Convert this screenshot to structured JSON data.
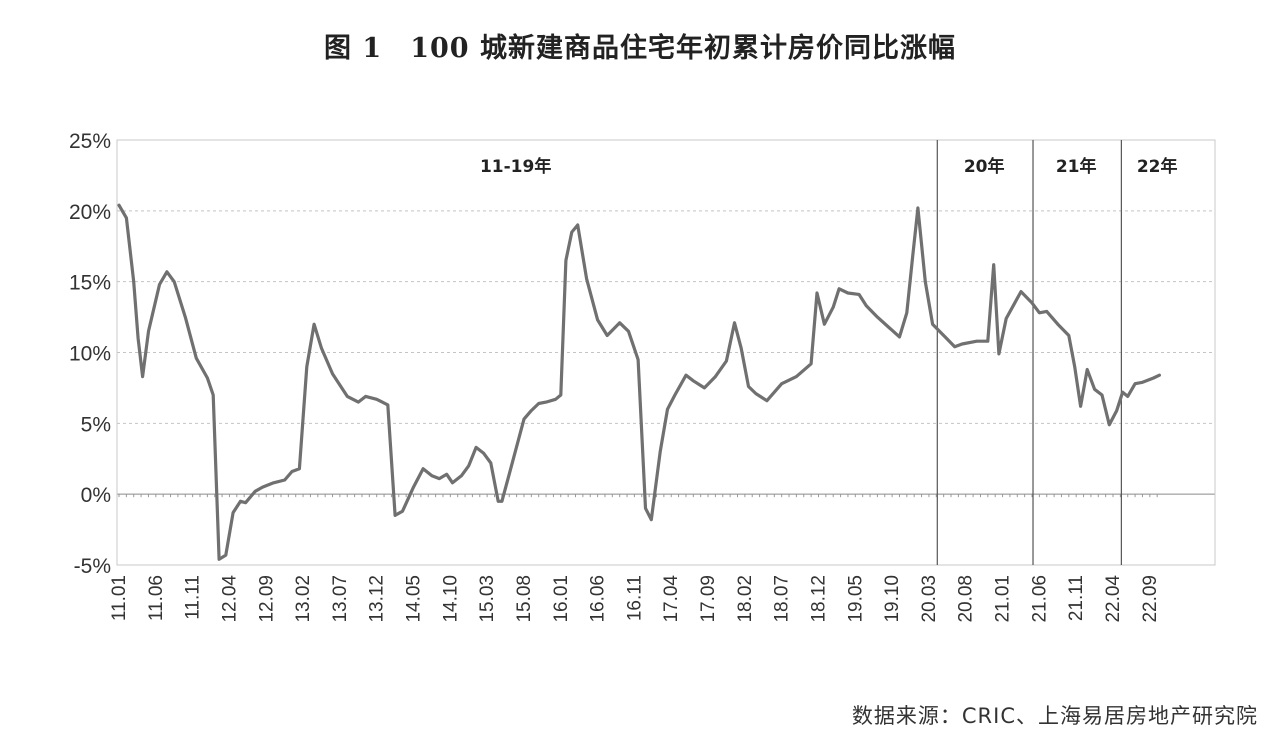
{
  "title": "图 1　100 城新建商品住宅年初累计房价同比涨幅",
  "source": "数据来源：CRIC、上海易居房地产研究院",
  "chart_data": {
    "type": "line",
    "title": "图 1　100 城新建商品住宅年初累计房价同比涨幅",
    "ylim": [
      -5,
      25
    ],
    "yticks": [
      -5,
      0,
      5,
      10,
      15,
      20,
      25
    ],
    "ytick_labels": [
      "-5%",
      "0%",
      "5%",
      "10%",
      "15%",
      "20%",
      "25%"
    ],
    "xlim": [
      0,
      146
    ],
    "xticks": [
      0,
      5,
      10,
      15,
      20,
      25,
      30,
      35,
      40,
      45,
      50,
      55,
      60,
      65,
      70,
      75,
      80,
      85,
      90,
      95,
      100,
      105,
      110,
      115,
      120,
      125,
      130,
      135,
      140
    ],
    "xtick_labels": [
      "11.01",
      "11.06",
      "11.11",
      "12.04",
      "12.09",
      "13.02",
      "13.07",
      "13.12",
      "14.05",
      "14.10",
      "15.03",
      "15.08",
      "16.01",
      "16.06",
      "16.11",
      "17.04",
      "17.09",
      "18.02",
      "18.07",
      "18.12",
      "19.05",
      "19.10",
      "20.03",
      "20.08",
      "21.01",
      "21.06",
      "21.11",
      "22.04",
      "22.09"
    ],
    "grid": true,
    "periods": [
      {
        "label": "11-19年",
        "start": 0,
        "end": 111
      },
      {
        "label": "20年",
        "start": 111,
        "end": 124
      },
      {
        "label": "21年",
        "start": 124,
        "end": 136
      },
      {
        "label": "22年",
        "start": 136,
        "end": 146
      }
    ],
    "series": [
      {
        "color": "#707070",
        "points": [
          [
            0,
            20.4
          ],
          [
            1,
            19.5
          ],
          [
            2,
            15.0
          ],
          [
            2.6,
            11.0
          ],
          [
            3.2,
            8.3
          ],
          [
            4,
            11.5
          ],
          [
            5.5,
            14.8
          ],
          [
            6.5,
            15.7
          ],
          [
            7.5,
            15.0
          ],
          [
            9,
            12.5
          ],
          [
            10.5,
            9.6
          ],
          [
            12,
            8.2
          ],
          [
            12.8,
            7.0
          ],
          [
            13.6,
            -4.6
          ],
          [
            14.5,
            -4.3
          ],
          [
            15.5,
            -1.3
          ],
          [
            16.5,
            -0.5
          ],
          [
            17.2,
            -0.6
          ],
          [
            18.5,
            0.2
          ],
          [
            19.5,
            0.5
          ],
          [
            21,
            0.8
          ],
          [
            22.5,
            1.0
          ],
          [
            23.5,
            1.6
          ],
          [
            24.5,
            1.8
          ],
          [
            25.5,
            9.0
          ],
          [
            26.5,
            12.0
          ],
          [
            27.5,
            10.3
          ],
          [
            29,
            8.5
          ],
          [
            31,
            6.9
          ],
          [
            32.5,
            6.5
          ],
          [
            33.5,
            6.9
          ],
          [
            35,
            6.7
          ],
          [
            36.5,
            6.3
          ],
          [
            37.5,
            -1.5
          ],
          [
            38.5,
            -1.2
          ],
          [
            40,
            0.5
          ],
          [
            41.3,
            1.8
          ],
          [
            42.5,
            1.3
          ],
          [
            43.5,
            1.1
          ],
          [
            44.5,
            1.4
          ],
          [
            45.3,
            0.8
          ],
          [
            46.5,
            1.3
          ],
          [
            47.5,
            2.0
          ],
          [
            48.5,
            3.3
          ],
          [
            49.5,
            2.9
          ],
          [
            50.5,
            2.2
          ],
          [
            51.5,
            -0.5
          ],
          [
            52,
            -0.5
          ],
          [
            53,
            1.4
          ],
          [
            55,
            5.3
          ],
          [
            56,
            5.9
          ],
          [
            57,
            6.4
          ],
          [
            58,
            6.5
          ],
          [
            59.3,
            6.7
          ],
          [
            60,
            7.0
          ],
          [
            60.7,
            16.5
          ],
          [
            61.5,
            18.5
          ],
          [
            62.3,
            19.0
          ],
          [
            63.5,
            15.2
          ],
          [
            65,
            12.3
          ],
          [
            66.3,
            11.2
          ],
          [
            68,
            12.1
          ],
          [
            69.2,
            11.5
          ],
          [
            70.5,
            9.5
          ],
          [
            71.5,
            -1.0
          ],
          [
            72.3,
            -1.8
          ],
          [
            73.5,
            3.0
          ],
          [
            74.5,
            6.0
          ],
          [
            75.5,
            7.0
          ],
          [
            77,
            8.4
          ],
          [
            78,
            8.0
          ],
          [
            79.5,
            7.5
          ],
          [
            81,
            8.3
          ],
          [
            82.5,
            9.4
          ],
          [
            83.6,
            12.1
          ],
          [
            84.5,
            10.3
          ],
          [
            85.5,
            7.6
          ],
          [
            86.5,
            7.1
          ],
          [
            88,
            6.6
          ],
          [
            90,
            7.8
          ],
          [
            92,
            8.3
          ],
          [
            94,
            9.2
          ],
          [
            94.8,
            14.2
          ],
          [
            95.8,
            12.0
          ],
          [
            97,
            13.2
          ],
          [
            97.8,
            14.5
          ],
          [
            99,
            14.2
          ],
          [
            100.5,
            14.1
          ],
          [
            101.5,
            13.3
          ],
          [
            103,
            12.5
          ],
          [
            104.5,
            11.8
          ],
          [
            106,
            11.1
          ],
          [
            107,
            12.8
          ],
          [
            107.8,
            16.8
          ],
          [
            108.5,
            20.2
          ],
          [
            109.5,
            15.0
          ],
          [
            110.5,
            12.0
          ],
          [
            112,
            11.2
          ],
          [
            113.5,
            10.4
          ],
          [
            114.5,
            10.6
          ],
          [
            116.5,
            10.8
          ],
          [
            118,
            10.8
          ],
          [
            118.8,
            16.2
          ],
          [
            119.5,
            9.9
          ],
          [
            120.5,
            12.4
          ],
          [
            122.5,
            14.3
          ],
          [
            124,
            13.5
          ],
          [
            125,
            12.8
          ],
          [
            126,
            12.9
          ],
          [
            127.5,
            12.0
          ],
          [
            129,
            11.2
          ],
          [
            129.8,
            9.0
          ],
          [
            130.6,
            6.2
          ],
          [
            131.5,
            8.8
          ],
          [
            132.5,
            7.4
          ],
          [
            133.5,
            7.0
          ],
          [
            134.5,
            4.9
          ],
          [
            135.5,
            5.9
          ],
          [
            136.3,
            7.2
          ],
          [
            137,
            6.9
          ],
          [
            138,
            7.8
          ],
          [
            139,
            7.9
          ],
          [
            140.5,
            8.2
          ],
          [
            141.3,
            8.4
          ]
        ]
      }
    ]
  }
}
